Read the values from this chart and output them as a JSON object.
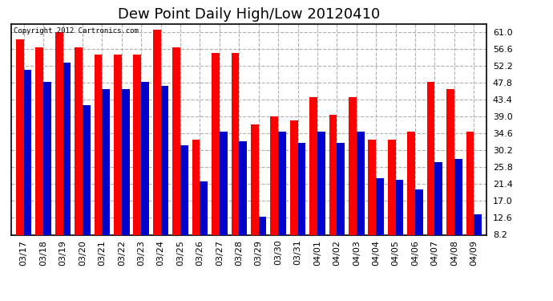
{
  "title": "Dew Point Daily High/Low 20120410",
  "copyright": "Copyright 2012 Cartronics.com",
  "dates": [
    "03/17",
    "03/18",
    "03/19",
    "03/20",
    "03/21",
    "03/22",
    "03/23",
    "03/24",
    "03/25",
    "03/26",
    "03/27",
    "03/28",
    "03/29",
    "03/30",
    "03/31",
    "04/01",
    "04/02",
    "04/03",
    "04/04",
    "04/05",
    "04/06",
    "04/07",
    "04/08",
    "04/09"
  ],
  "highs": [
    59.0,
    57.0,
    61.0,
    57.0,
    55.0,
    55.0,
    55.0,
    61.5,
    57.0,
    33.0,
    55.5,
    55.5,
    37.0,
    39.0,
    38.0,
    44.0,
    39.5,
    44.0,
    33.0,
    33.0,
    35.0,
    48.0,
    46.0,
    35.0
  ],
  "lows": [
    51.0,
    48.0,
    53.0,
    42.0,
    46.0,
    46.0,
    48.0,
    47.0,
    31.5,
    22.0,
    35.0,
    32.5,
    13.0,
    35.0,
    32.0,
    35.0,
    32.0,
    35.0,
    23.0,
    22.5,
    20.0,
    27.0,
    28.0,
    13.5
  ],
  "high_color": "#ff0000",
  "low_color": "#0000cc",
  "bg_color": "#ffffff",
  "plot_bg_color": "#ffffff",
  "grid_color": "#b0b0b0",
  "ylim_min": 8.2,
  "ylim_max": 63.0,
  "yticks": [
    8.2,
    12.6,
    17.0,
    21.4,
    25.8,
    30.2,
    34.6,
    39.0,
    43.4,
    47.8,
    52.2,
    56.6,
    61.0
  ],
  "title_fontsize": 13,
  "tick_fontsize": 8,
  "bar_width": 0.4
}
